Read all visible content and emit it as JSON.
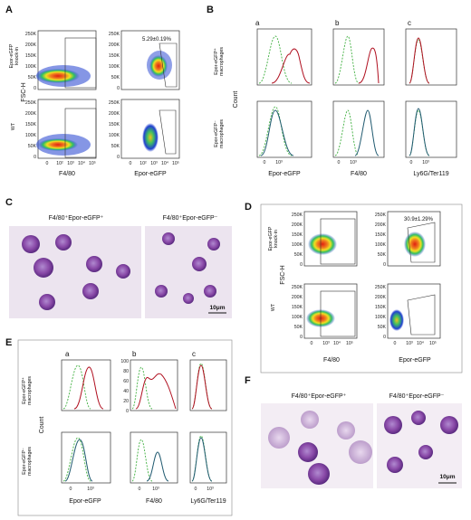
{
  "panels": {
    "A": {
      "letter": "A",
      "row_labels": [
        "Epor-eGFP",
        "knock-in",
        "WT"
      ],
      "y_axis": "FSC-H",
      "x_axes": [
        "F4/80",
        "Epor-eGFP"
      ],
      "y_ticks": [
        "250K",
        "200K",
        "150K",
        "100K",
        "50K",
        "0"
      ],
      "x_ticks": [
        "0",
        "10²",
        "10³",
        "10⁴",
        "10⁵"
      ],
      "gate_percent": "5.29±0.19%"
    },
    "B": {
      "letter": "B",
      "sub_letters": [
        "a",
        "b",
        "c"
      ],
      "row_labels": [
        "Epor-eGFP⁺",
        "macrophages",
        "Epor-eGFP⁻",
        "macrophages"
      ],
      "y_axis": "Count",
      "x_axes": [
        "Epor-eGFP",
        "F4/80",
        "Ly6G/Ter119"
      ],
      "x_ticks": [
        "0",
        "10³",
        "10⁴",
        "10⁵"
      ]
    },
    "C": {
      "letter": "C",
      "captions": [
        "F4/80⁺Epor-eGFP⁺",
        "F4/80⁺Epor-eGFP⁻"
      ],
      "scale": "10μm"
    },
    "D": {
      "letter": "D",
      "row_labels": [
        "Epor-eGFP",
        "knock-in",
        "WT"
      ],
      "y_axis": "FSC-H",
      "x_axes": [
        "F4/80",
        "Epor-eGFP"
      ],
      "y_ticks": [
        "250K",
        "200K",
        "150K",
        "100K",
        "50K",
        "0"
      ],
      "x_ticks": [
        "0",
        "10³",
        "10⁴",
        "10⁵"
      ],
      "gate_percent": "30.9±1.29%"
    },
    "E": {
      "letter": "E",
      "sub_letters": [
        "a",
        "b",
        "c"
      ],
      "row_labels": [
        "Epor-eGFP⁺",
        "macrophages",
        "Epor-eGFP⁻",
        "macrophages"
      ],
      "y_axis": "Count",
      "x_axes": [
        "Epor-eGFP",
        "F4/80",
        "Ly6G/Ter119"
      ],
      "y_ticks": [
        "100",
        "80",
        "60",
        "40",
        "20",
        "0"
      ],
      "x_ticks": [
        "0",
        "10³",
        "10⁴",
        "10⁵"
      ]
    },
    "F": {
      "letter": "F",
      "captions": [
        "F4/80⁺Epor-eGFP⁺",
        "F4/80⁺Epor-eGFP⁻"
      ],
      "scale": "10μm"
    }
  },
  "colors": {
    "density_hot": "#e02010",
    "density_mid": "#f0e020",
    "density_cool": "#30c060",
    "density_cold": "#2040d0",
    "dashed_control": "#40b040",
    "positive_trace": "#b01020",
    "negative_trace": "#205a70",
    "cell_stain": "#8a4aa8"
  }
}
